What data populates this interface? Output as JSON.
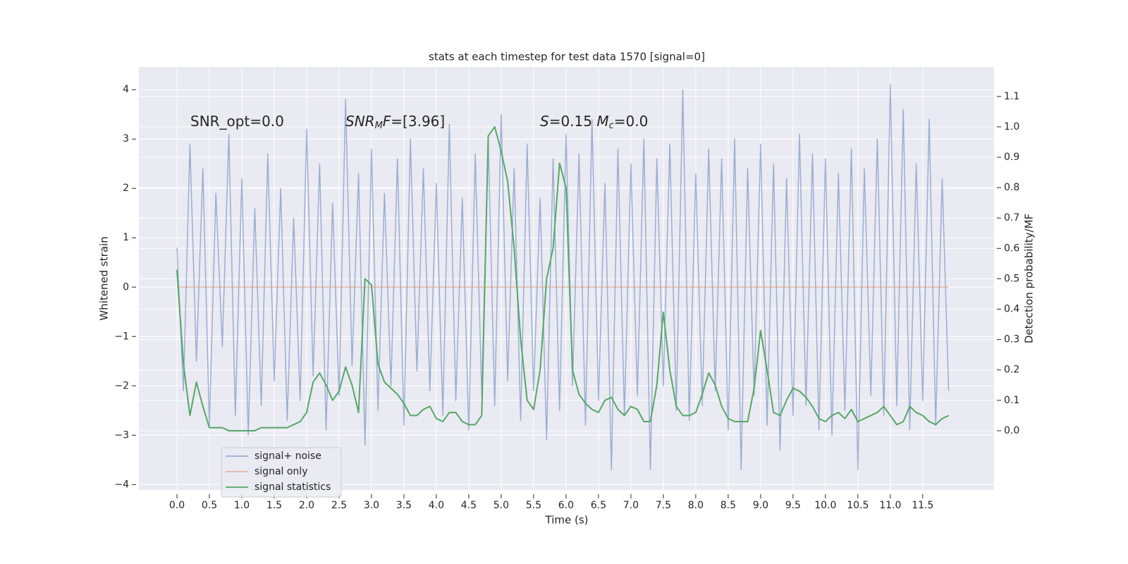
{
  "chart_data": {
    "type": "line",
    "title": "stats at each timestep for test data 1570 [signal=0]",
    "xlabel": "Time (s)",
    "ylabel": "Whitened strain",
    "y2label": "Detection probability/MF",
    "annotations": [
      [
        {
          "text": "SNR_opt=0.0",
          "italic": false,
          "sub": false
        }
      ],
      [
        {
          "text": "SNR",
          "italic": true,
          "sub": false
        },
        {
          "text": "M",
          "italic": true,
          "sub": true
        },
        {
          "text": "F",
          "italic": true,
          "sub": false
        },
        {
          "text": "=[3.96]",
          "italic": false,
          "sub": false
        }
      ],
      [
        {
          "text": "S",
          "italic": true,
          "sub": false
        },
        {
          "text": "=0.15   ",
          "italic": false,
          "sub": false
        },
        {
          "text": "M",
          "italic": true,
          "sub": false
        },
        {
          "text": "c",
          "italic": true,
          "sub": true
        },
        {
          "text": "=0.0",
          "italic": false,
          "sub": false
        }
      ]
    ],
    "x": [
      0.0,
      0.1,
      0.2,
      0.3,
      0.4,
      0.5,
      0.6,
      0.7,
      0.8,
      0.9,
      1.0,
      1.1,
      1.2,
      1.3,
      1.4,
      1.5,
      1.6,
      1.7,
      1.8,
      1.9,
      2.0,
      2.1,
      2.2,
      2.3,
      2.4,
      2.5,
      2.6,
      2.7,
      2.8,
      2.9,
      3.0,
      3.1,
      3.2,
      3.3,
      3.4,
      3.5,
      3.6,
      3.7,
      3.8,
      3.9,
      4.0,
      4.1,
      4.2,
      4.3,
      4.4,
      4.5,
      4.6,
      4.7,
      4.8,
      4.9,
      5.0,
      5.1,
      5.2,
      5.3,
      5.4,
      5.5,
      5.6,
      5.7,
      5.8,
      5.9,
      6.0,
      6.1,
      6.2,
      6.3,
      6.4,
      6.5,
      6.6,
      6.7,
      6.8,
      6.9,
      7.0,
      7.1,
      7.2,
      7.3,
      7.4,
      7.5,
      7.6,
      7.7,
      7.8,
      7.9,
      8.0,
      8.1,
      8.2,
      8.3,
      8.4,
      8.5,
      8.6,
      8.7,
      8.8,
      8.9,
      9.0,
      9.1,
      9.2,
      9.3,
      9.4,
      9.5,
      9.6,
      9.7,
      9.8,
      9.9,
      10.0,
      10.1,
      10.2,
      10.3,
      10.4,
      10.5,
      10.6,
      10.7,
      10.8,
      10.9,
      11.0,
      11.1,
      11.2,
      11.3,
      11.4,
      11.5,
      11.6,
      11.7,
      11.8,
      11.9
    ],
    "series": [
      {
        "name": "signal+ noise",
        "color": "#4c72b0",
        "opacity": 0.5,
        "axis": "y",
        "values": [
          0.8,
          -2.1,
          2.9,
          -1.5,
          2.4,
          -2.8,
          1.9,
          -1.2,
          3.1,
          -2.6,
          2.2,
          -3.0,
          1.6,
          -2.4,
          2.7,
          -1.9,
          2.0,
          -2.7,
          1.4,
          -2.3,
          3.2,
          -1.8,
          2.5,
          -2.9,
          1.7,
          -2.2,
          3.8,
          -1.6,
          2.3,
          -3.2,
          2.8,
          -2.5,
          1.9,
          -2.0,
          2.6,
          -2.8,
          3.0,
          -1.7,
          2.4,
          -2.1,
          2.1,
          -2.6,
          3.3,
          -2.3,
          1.8,
          -2.9,
          2.7,
          -2.2,
          3.0,
          -2.4,
          3.5,
          -1.9,
          2.4,
          -2.7,
          2.9,
          -2.1,
          1.8,
          -3.1,
          2.6,
          -2.5,
          3.1,
          -2.0,
          2.7,
          -2.8,
          3.4,
          -2.3,
          2.1,
          -3.7,
          2.8,
          -2.6,
          2.5,
          -2.2,
          3.0,
          -3.7,
          2.6,
          -2.0,
          2.9,
          -2.5,
          4.0,
          -2.7,
          2.3,
          -2.4,
          2.8,
          -2.1,
          2.6,
          -2.9,
          3.0,
          -3.7,
          2.4,
          -2.2,
          2.9,
          -2.8,
          2.5,
          -3.3,
          2.2,
          -2.6,
          3.1,
          -2.4,
          2.7,
          -2.9,
          2.6,
          -3.0,
          2.3,
          -2.5,
          2.8,
          -3.7,
          2.4,
          -2.2,
          3.0,
          -2.6,
          4.1,
          -2.4,
          3.6,
          -2.9,
          2.5,
          -2.3,
          3.4,
          -2.8,
          2.2,
          -2.1
        ]
      },
      {
        "name": "signal only",
        "color": "#dd8452",
        "opacity": 0.5,
        "axis": "y",
        "x": [
          0.0,
          11.9
        ],
        "values": [
          0,
          0
        ]
      },
      {
        "name": "signal statistics",
        "color": "#55a868",
        "opacity": 1,
        "axis": "y2",
        "values": [
          0.53,
          0.22,
          0.05,
          0.16,
          0.08,
          0.01,
          0.01,
          0.01,
          0.0,
          0.0,
          0.0,
          0.0,
          0.0,
          0.01,
          0.01,
          0.01,
          0.01,
          0.01,
          0.02,
          0.03,
          0.06,
          0.16,
          0.19,
          0.15,
          0.1,
          0.13,
          0.21,
          0.15,
          0.06,
          0.5,
          0.48,
          0.22,
          0.16,
          0.14,
          0.12,
          0.09,
          0.05,
          0.05,
          0.07,
          0.08,
          0.04,
          0.03,
          0.06,
          0.06,
          0.03,
          0.02,
          0.02,
          0.05,
          0.97,
          1.0,
          0.92,
          0.82,
          0.6,
          0.3,
          0.1,
          0.07,
          0.2,
          0.5,
          0.6,
          0.88,
          0.8,
          0.2,
          0.12,
          0.09,
          0.07,
          0.06,
          0.1,
          0.11,
          0.07,
          0.05,
          0.08,
          0.07,
          0.03,
          0.03,
          0.15,
          0.39,
          0.2,
          0.08,
          0.05,
          0.05,
          0.06,
          0.12,
          0.19,
          0.15,
          0.08,
          0.04,
          0.03,
          0.03,
          0.03,
          0.14,
          0.33,
          0.2,
          0.06,
          0.05,
          0.1,
          0.14,
          0.13,
          0.11,
          0.08,
          0.04,
          0.03,
          0.05,
          0.06,
          0.04,
          0.07,
          0.03,
          0.04,
          0.05,
          0.06,
          0.08,
          0.05,
          0.02,
          0.03,
          0.08,
          0.06,
          0.05,
          0.03,
          0.02,
          0.04,
          0.05
        ]
      }
    ],
    "xlim": [
      -0.587,
      12.6
    ],
    "ylim": [
      -4.11,
      4.46
    ],
    "y2lim": [
      -0.195,
      1.197
    ],
    "xticks": [
      {
        "value": 0,
        "label": "0.0"
      },
      {
        "value": 0.5,
        "label": "0.5"
      },
      {
        "value": 1,
        "label": "1.0"
      },
      {
        "value": 1.5,
        "label": "1.5"
      },
      {
        "value": 2,
        "label": "2.0"
      },
      {
        "value": 2.5,
        "label": "2.5"
      },
      {
        "value": 3,
        "label": "3.0"
      },
      {
        "value": 3.5,
        "label": "3.5"
      },
      {
        "value": 4,
        "label": "4.0"
      },
      {
        "value": 4.5,
        "label": "4.5"
      },
      {
        "value": 5,
        "label": "5.0"
      },
      {
        "value": 5.5,
        "label": "5.5"
      },
      {
        "value": 6,
        "label": "6.0"
      },
      {
        "value": 6.5,
        "label": "6.5"
      },
      {
        "value": 7,
        "label": "7.0"
      },
      {
        "value": 7.5,
        "label": "7.5"
      },
      {
        "value": 8,
        "label": "8.0"
      },
      {
        "value": 8.5,
        "label": "8.5"
      },
      {
        "value": 9,
        "label": "9.0"
      },
      {
        "value": 9.5,
        "label": "9.5"
      },
      {
        "value": 10,
        "label": "10.0"
      },
      {
        "value": 10.5,
        "label": "10.5"
      },
      {
        "value": 11,
        "label": "11.0"
      },
      {
        "value": 11.5,
        "label": "11.5"
      }
    ],
    "yticks": [
      {
        "value": -4,
        "label": "−4"
      },
      {
        "value": -3,
        "label": "−3"
      },
      {
        "value": -2,
        "label": "−2"
      },
      {
        "value": -1,
        "label": "−1"
      },
      0,
      1,
      2,
      3,
      4
    ],
    "y2ticks": [
      {
        "value": 0,
        "label": "0.0"
      },
      {
        "value": 0.1,
        "label": "0.1"
      },
      {
        "value": 0.2,
        "label": "0.2"
      },
      {
        "value": 0.3,
        "label": "0.3"
      },
      {
        "value": 0.4,
        "label": "0.4"
      },
      {
        "value": 0.5,
        "label": "0.5"
      },
      {
        "value": 0.6,
        "label": "0.6"
      },
      {
        "value": 0.7,
        "label": "0.7"
      },
      {
        "value": 0.8,
        "label": "0.8"
      },
      {
        "value": 0.9,
        "label": "0.9"
      },
      {
        "value": 1,
        "label": "1.0"
      },
      {
        "value": 1.1,
        "label": "1.1"
      }
    ],
    "grid": true,
    "legend": "lower left"
  }
}
